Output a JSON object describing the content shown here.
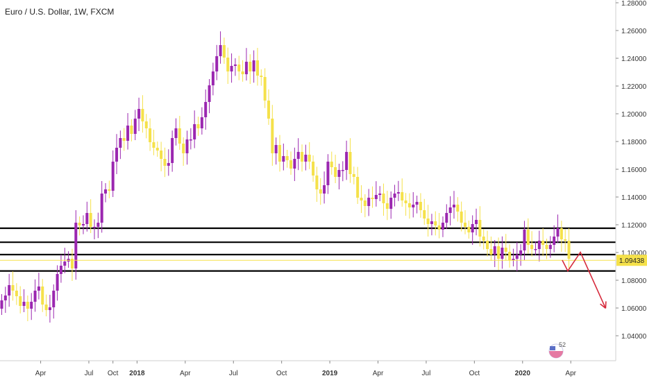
{
  "symbol_title": "Euro / U.S. Dollar, 1W, FXCM",
  "price_tag": "1.09438",
  "badge_text": "52",
  "colors": {
    "up": "#9b27b0",
    "down": "#f5e14a",
    "hline": "#000000",
    "arrow": "#d62a3c",
    "tag_bg": "#f5e14a",
    "grid_axis": "#cfcfcf"
  },
  "chart_data": {
    "type": "candlestick",
    "title": "Euro / U.S. Dollar, 1W, FXCM",
    "ylim": [
      1.0208,
      1.28
    ],
    "y_ticks": [
      "1.28000",
      "1.26000",
      "1.24000",
      "1.22000",
      "1.20000",
      "1.18000",
      "1.16000",
      "1.14000",
      "1.12000",
      "1.10000",
      "1.08000",
      "1.06000",
      "1.04000"
    ],
    "x_ticks": [
      "Apr",
      "Jul",
      "2018",
      "Apr",
      "Jul",
      "Oct",
      "2019",
      "Apr",
      "Jul",
      "Oct",
      "2020",
      "Apr"
    ],
    "x_tick_extra": [
      "Oct"
    ],
    "horizontal_lines": [
      1.1175,
      1.1074,
      1.0985,
      1.0867
    ],
    "current_price": 1.09438,
    "closes": [
      1.0655,
      1.069,
      1.0765,
      1.0725,
      1.0685,
      1.0615,
      1.0645,
      1.0595,
      1.0645,
      1.0725,
      1.0755,
      1.0625,
      1.0585,
      1.0605,
      1.0725,
      1.0845,
      1.0905,
      1.0935,
      1.0955,
      1.0885,
      1.1215,
      1.1195,
      1.1205,
      1.1285,
      1.1185,
      1.1185,
      1.1215,
      1.1425,
      1.1455,
      1.1445,
      1.1655,
      1.1755,
      1.1825,
      1.1805,
      1.1915,
      1.1855,
      1.1965,
      1.2035,
      1.1945,
      1.1895,
      1.1795,
      1.1755,
      1.1735,
      1.1675,
      1.1625,
      1.1645,
      1.1825,
      1.1895,
      1.1785,
      1.1715,
      1.1815,
      1.1815,
      1.1925,
      1.1895,
      1.1975,
      1.2085,
      1.2205,
      1.2305,
      1.2415,
      1.2495,
      1.2405,
      1.2305,
      1.2345,
      1.2355,
      1.2305,
      1.2285,
      1.2375,
      1.2305,
      1.2385,
      1.2275,
      1.2265,
      1.2095,
      1.1965,
      1.1715,
      1.1775,
      1.1655,
      1.1695,
      1.1665,
      1.1605,
      1.1675,
      1.1725,
      1.1655,
      1.1705,
      1.1655,
      1.1555,
      1.1455,
      1.1425,
      1.1485,
      1.1655,
      1.1615,
      1.1545,
      1.1595,
      1.1595,
      1.1725,
      1.1565,
      1.1545,
      1.1395,
      1.1375,
      1.1335,
      1.1395,
      1.1385,
      1.1415,
      1.1425,
      1.1355,
      1.1315,
      1.1395,
      1.1425,
      1.1435,
      1.1375,
      1.1355,
      1.1325,
      1.1345,
      1.1365,
      1.1305,
      1.1245,
      1.1205,
      1.1225,
      1.1195,
      1.1165,
      1.1215,
      1.1285,
      1.1325,
      1.1345,
      1.1295,
      1.1215,
      1.1185,
      1.1145,
      1.1205,
      1.1235,
      1.1115,
      1.1085,
      1.1025,
      1.0985,
      1.1045,
      1.0955,
      1.1035,
      1.1005,
      1.0945,
      1.0955,
      1.0985,
      1.1015,
      1.1165,
      1.1055,
      1.1025,
      1.1025,
      1.1085,
      1.1055,
      1.1025,
      1.1055,
      1.1115,
      1.1175,
      1.1095,
      1.1085,
      1.0955
    ]
  },
  "chart_data_note": "",
  "projection_path": [
    {
      "i": 151.2,
      "p": 1.0945
    },
    {
      "i": 152.7,
      "p": 1.0867
    },
    {
      "i": 156.1,
      "p": 1.1002
    },
    {
      "i": 162.9,
      "p": 1.0598
    }
  ]
}
